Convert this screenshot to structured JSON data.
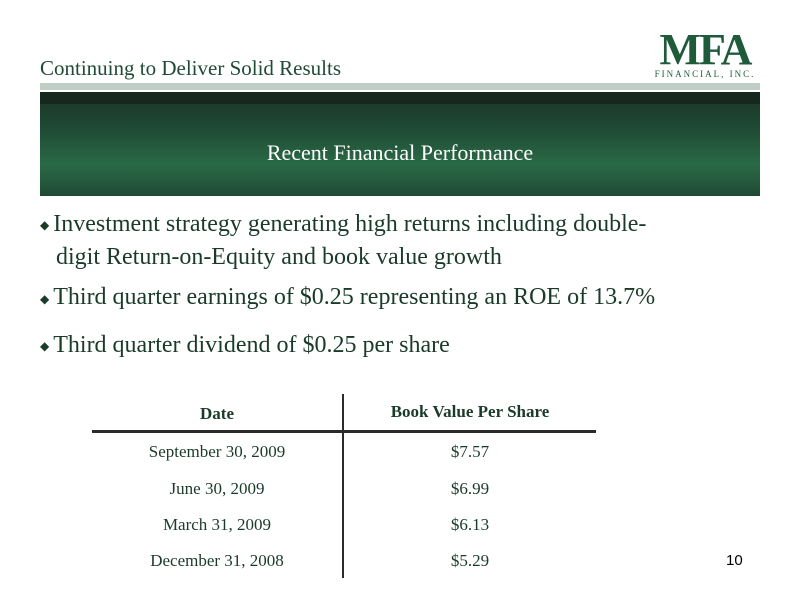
{
  "header": {
    "title": "Continuing to Deliver Solid Results",
    "logo_mark": "MFA",
    "logo_sub": "FINANCIAL, INC."
  },
  "banner": {
    "title": "Recent Financial Performance"
  },
  "bullets": [
    {
      "line1": "Investment strategy generating high returns including double-",
      "line2": "digit Return-on-Equity and book value growth"
    },
    {
      "text": "Third quarter earnings of $0.25 representing an ROE of 13.7%"
    },
    {
      "text": "Third quarter dividend of $0.25 per share"
    }
  ],
  "table": {
    "headers": [
      "Date",
      "Book Value Per Share"
    ],
    "rows": [
      [
        "September 30, 2009",
        "$7.57"
      ],
      [
        "June 30, 2009",
        "$6.99"
      ],
      [
        "March 31, 2009",
        "$6.13"
      ],
      [
        "December 31, 2008",
        "$5.29"
      ]
    ]
  },
  "footer": {
    "page_number": "10"
  },
  "colors": {
    "brand_green": "#1f5a3a",
    "banner_dark": "#1c3425",
    "text": "#1a3a2a"
  }
}
